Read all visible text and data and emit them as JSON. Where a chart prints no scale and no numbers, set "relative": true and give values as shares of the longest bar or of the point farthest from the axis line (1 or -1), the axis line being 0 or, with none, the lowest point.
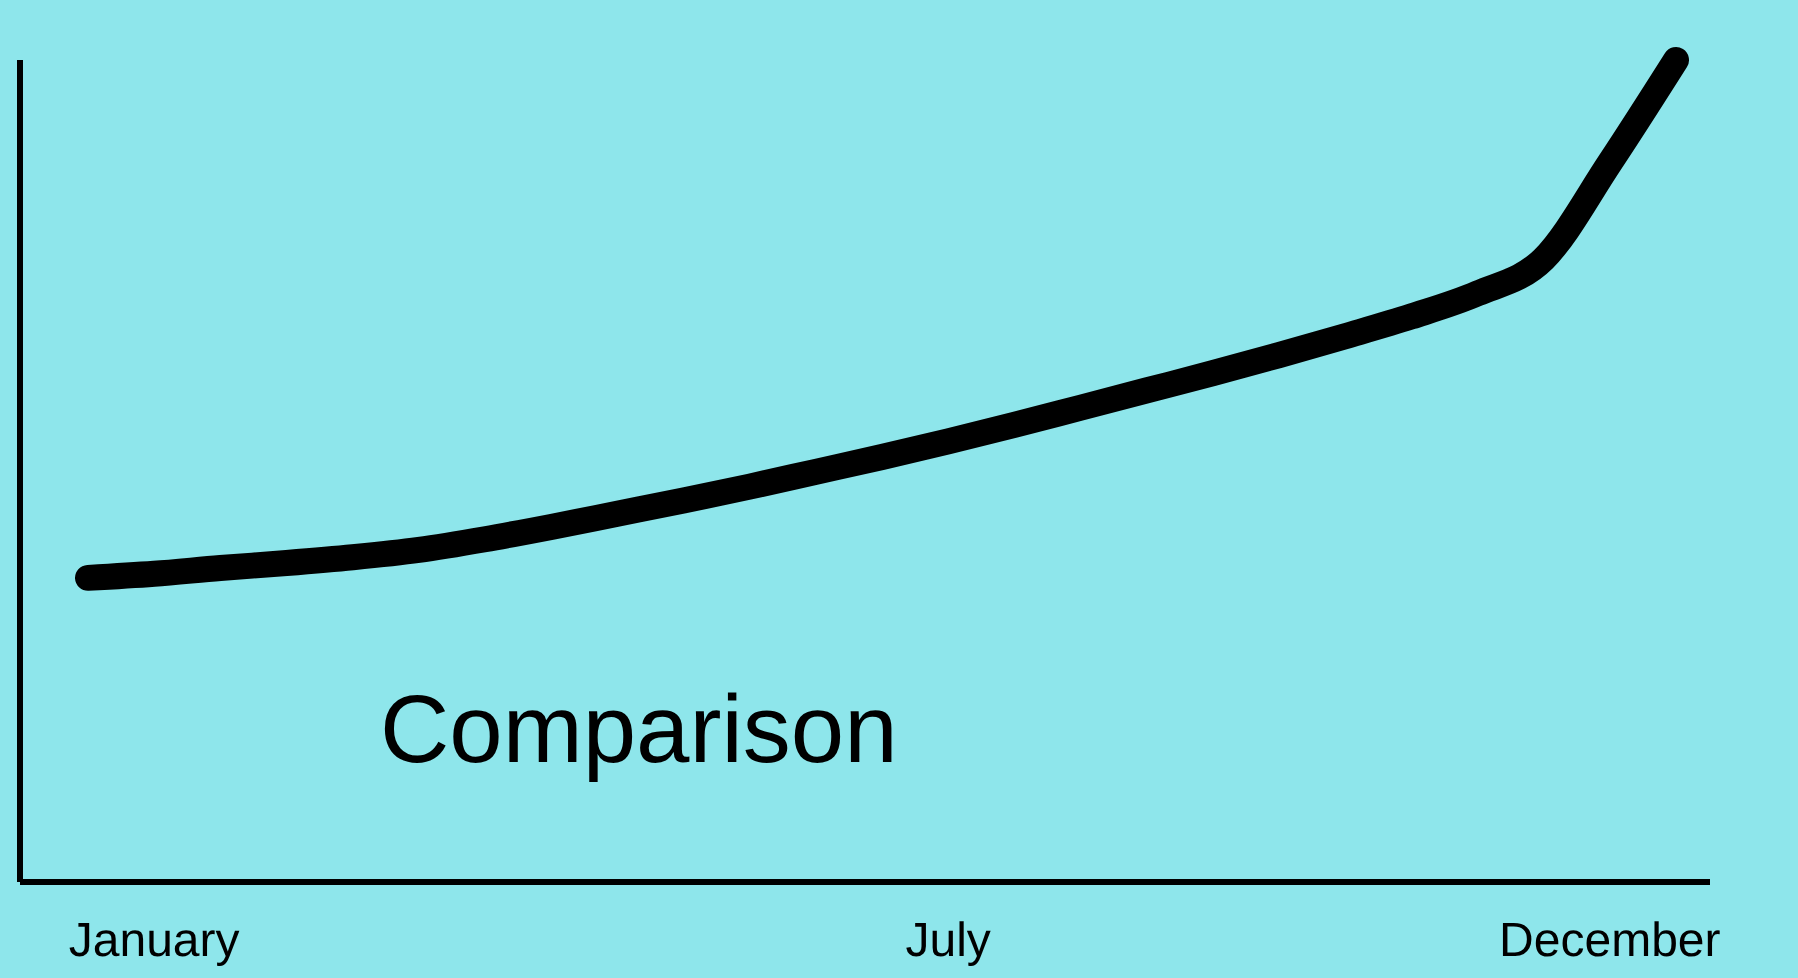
{
  "chart_data": {
    "type": "line",
    "relative": true,
    "categories": [
      null,
      "January",
      null,
      null,
      null,
      null,
      null,
      null,
      null,
      null,
      null,
      null,
      null,
      "July",
      null,
      null,
      null,
      null,
      null,
      null,
      null,
      null,
      null,
      "December",
      null
    ],
    "series": [
      {
        "color": "#000000",
        "values": [
          0.37,
          0.375,
          0.382,
          0.388,
          0.395,
          0.404,
          0.417,
          0.432,
          0.448,
          0.464,
          0.481,
          0.499,
          0.517,
          0.536,
          0.556,
          0.577,
          0.598,
          0.619,
          0.641,
          0.664,
          0.688,
          0.716,
          0.758,
          0.875,
          1.0
        ]
      }
    ],
    "annotations": [
      "Comparison"
    ],
    "marker": "none",
    "line_style": "solid"
  }
}
